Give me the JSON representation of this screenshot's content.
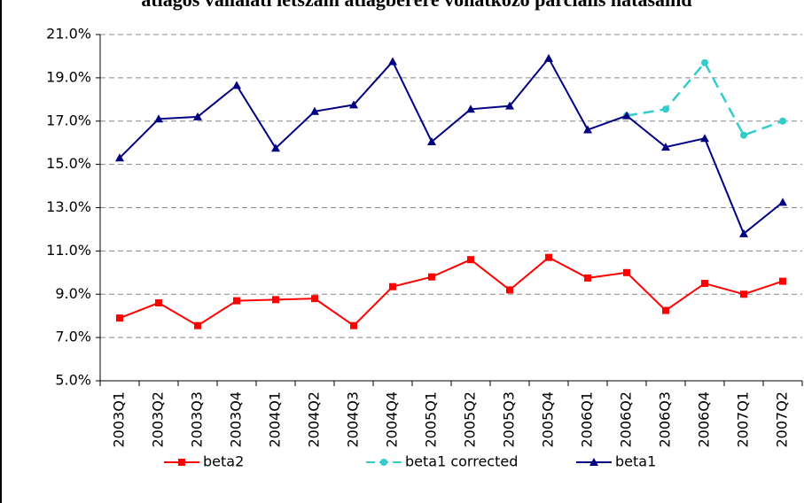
{
  "chart_data": {
    "type": "line",
    "title": "átlagos vállalati létszám átlagbérére vonatkozó parciális hatásaind",
    "categories": [
      "2003Q1",
      "2003Q2",
      "2003Q3",
      "2003Q4",
      "2004Q1",
      "2004Q2",
      "2004Q3",
      "2004Q4",
      "2005Q1",
      "2005Q2",
      "2005Q3",
      "2005Q4",
      "2006Q1",
      "2006Q2",
      "2006Q3",
      "2006Q4",
      "2007Q1",
      "2007Q2"
    ],
    "series": [
      {
        "name": "beta2",
        "color": "#ff0000",
        "marker": "square",
        "dashed": false,
        "values": [
          7.9,
          8.6,
          7.55,
          8.7,
          8.75,
          8.8,
          7.55,
          9.35,
          9.8,
          10.6,
          9.2,
          10.7,
          9.75,
          10.0,
          8.25,
          9.5,
          9.0,
          9.6
        ]
      },
      {
        "name": "beta1 corrected",
        "color": "#33cccc",
        "marker": "circle",
        "dashed": true,
        "values": [
          null,
          null,
          null,
          null,
          null,
          null,
          null,
          null,
          null,
          null,
          null,
          null,
          null,
          17.25,
          17.55,
          19.7,
          16.35,
          17.0
        ]
      },
      {
        "name": "beta1",
        "color": "#000080",
        "marker": "triangle",
        "dashed": false,
        "values": [
          15.3,
          17.1,
          17.2,
          18.65,
          15.75,
          17.45,
          17.75,
          19.75,
          16.05,
          17.55,
          17.7,
          19.9,
          16.6,
          17.25,
          15.8,
          16.2,
          11.8,
          13.25
        ]
      }
    ],
    "ylim": [
      5,
      21
    ],
    "yticks": [
      {
        "value": 5,
        "label": "5.0%"
      },
      {
        "value": 7,
        "label": "7.0%"
      },
      {
        "value": 9,
        "label": "9.0%"
      },
      {
        "value": 11,
        "label": "11.0%"
      },
      {
        "value": 13,
        "label": "13.0%"
      },
      {
        "value": 15,
        "label": "15.0%"
      },
      {
        "value": 17,
        "label": "17.0%"
      },
      {
        "value": 19,
        "label": "19.0%"
      },
      {
        "value": 21,
        "label": "21.0%"
      }
    ],
    "grid": true,
    "legend": "bottom"
  }
}
